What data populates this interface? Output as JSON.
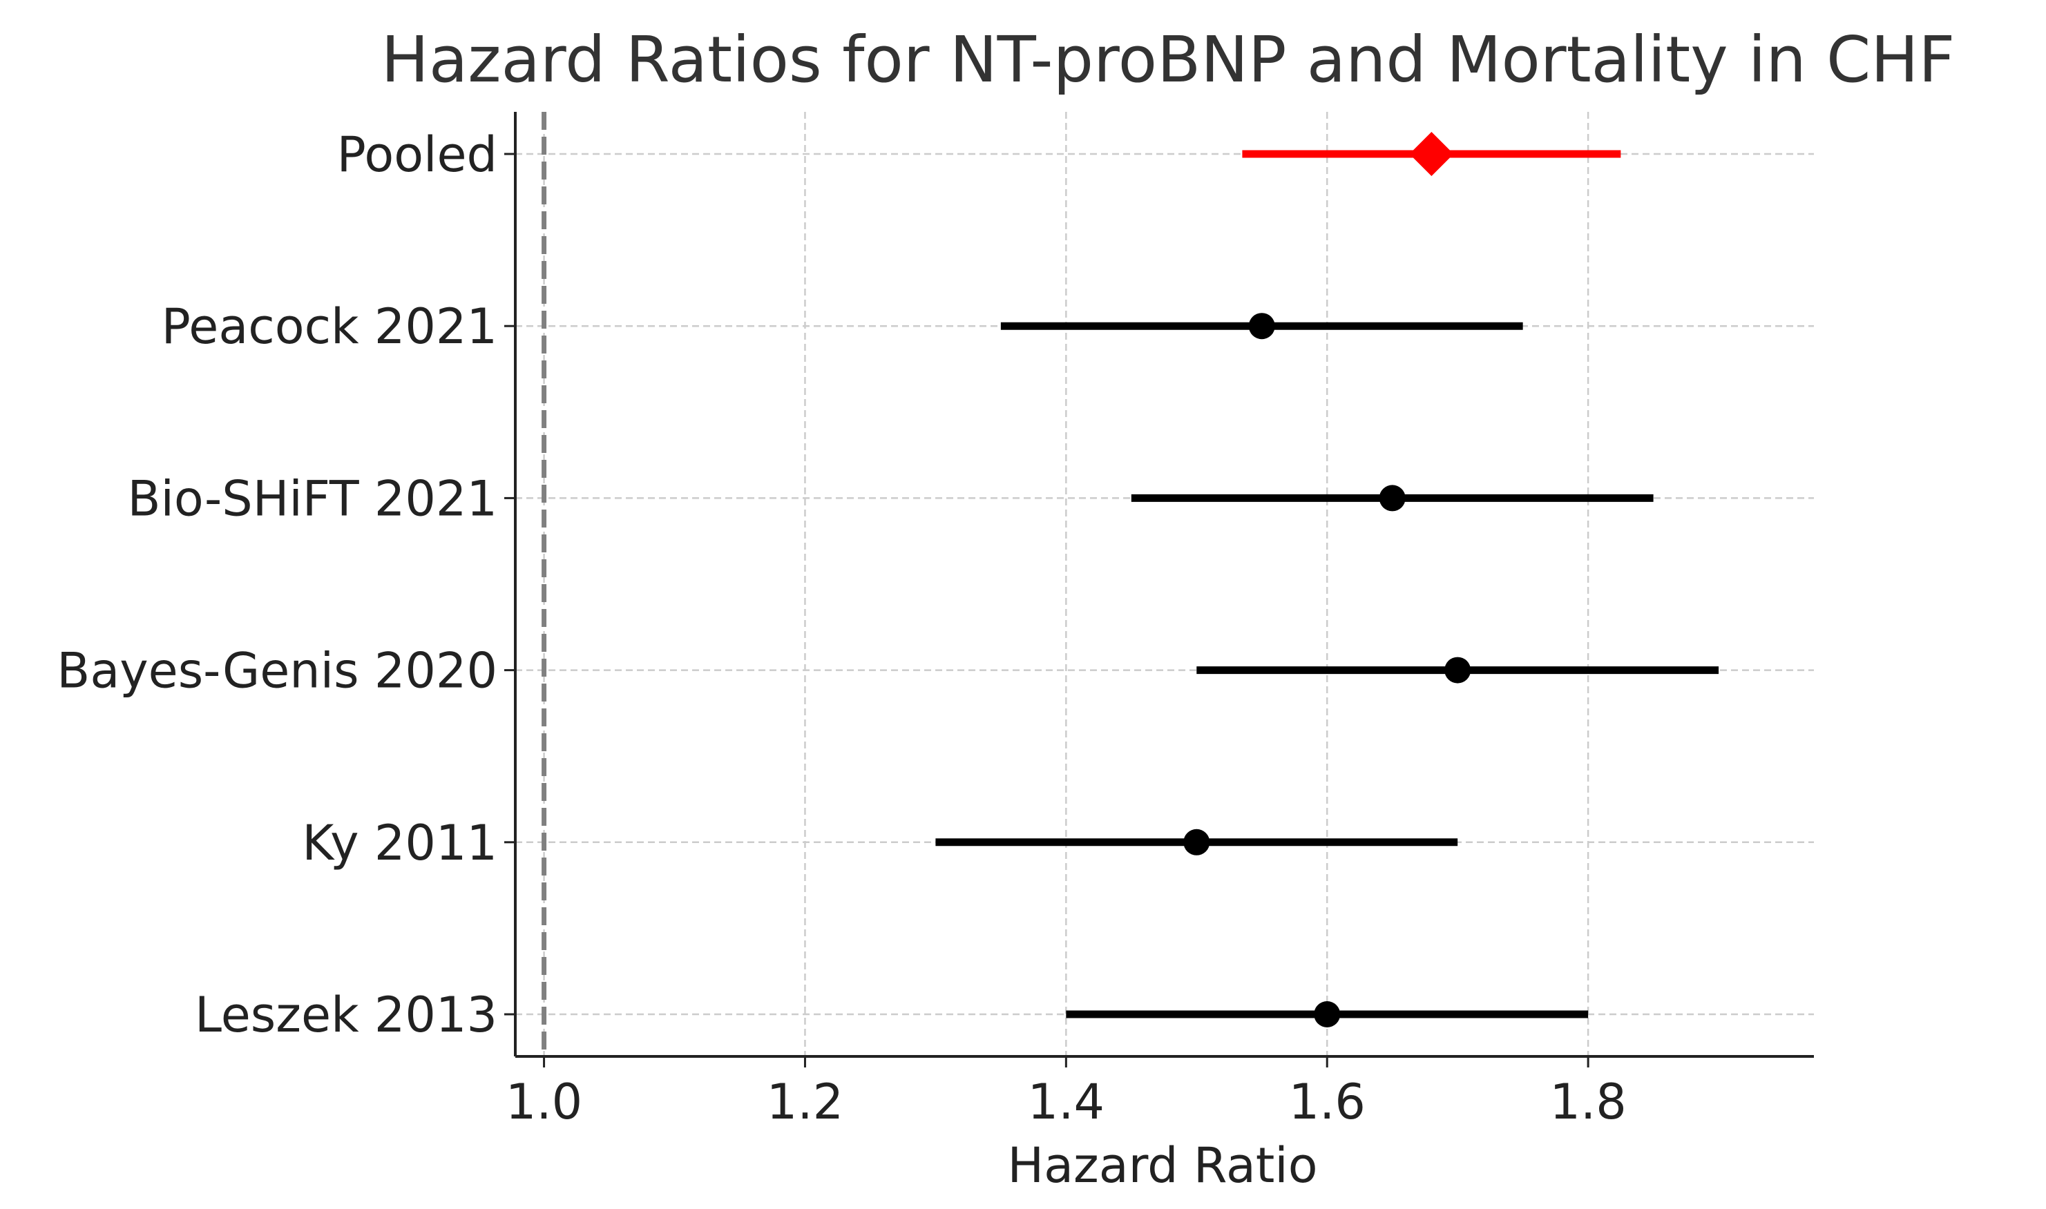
{
  "chart_data": {
    "type": "forest",
    "title": "Hazard Ratios for NT-proBNP and Mortality in CHF",
    "xlabel": "Hazard Ratio",
    "ylabel": "",
    "xlim": [
      0.978,
      1.973
    ],
    "x_ticks": [
      1.0,
      1.2,
      1.4,
      1.6,
      1.8
    ],
    "x_tick_labels": [
      "1.0",
      "1.2",
      "1.4",
      "1.6",
      "1.8"
    ],
    "reference_line": 1.0,
    "grid": true,
    "studies": [
      {
        "label": "Pooled",
        "hr": 1.68,
        "ci_low": 1.535,
        "ci_high": 1.825,
        "pooled": true
      },
      {
        "label": "Peacock 2021",
        "hr": 1.55,
        "ci_low": 1.35,
        "ci_high": 1.75
      },
      {
        "label": "Bio-SHiFT 2021",
        "hr": 1.65,
        "ci_low": 1.45,
        "ci_high": 1.85
      },
      {
        "label": "Bayes-Genis 2020",
        "hr": 1.7,
        "ci_low": 1.5,
        "ci_high": 1.9
      },
      {
        "label": "Ky 2011",
        "hr": 1.5,
        "ci_low": 1.3,
        "ci_high": 1.7
      },
      {
        "label": "Leszek 2013",
        "hr": 1.6,
        "ci_low": 1.4,
        "ci_high": 1.8
      }
    ],
    "colors": {
      "study": "#000000",
      "pooled": "#ff0000",
      "reference": "#808080",
      "grid": "#cccccc",
      "axis": "#222222"
    }
  }
}
